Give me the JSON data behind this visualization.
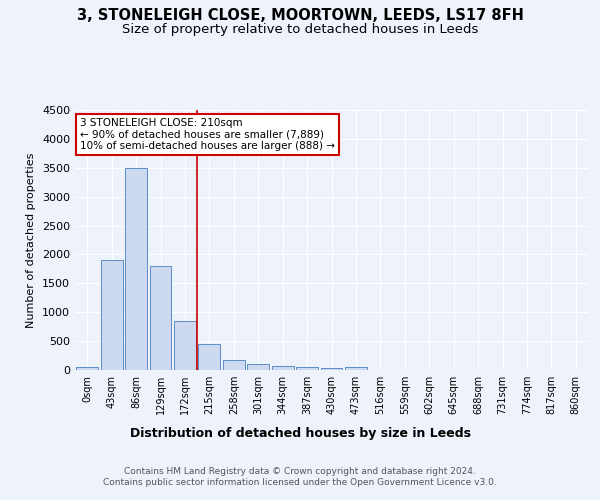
{
  "title1": "3, STONELEIGH CLOSE, MOORTOWN, LEEDS, LS17 8FH",
  "title2": "Size of property relative to detached houses in Leeds",
  "xlabel": "Distribution of detached houses by size in Leeds",
  "ylabel": "Number of detached properties",
  "categories": [
    "0sqm",
    "43sqm",
    "86sqm",
    "129sqm",
    "172sqm",
    "215sqm",
    "258sqm",
    "301sqm",
    "344sqm",
    "387sqm",
    "430sqm",
    "473sqm",
    "516sqm",
    "559sqm",
    "602sqm",
    "645sqm",
    "688sqm",
    "731sqm",
    "774sqm",
    "817sqm",
    "860sqm"
  ],
  "values": [
    50,
    1900,
    3500,
    1800,
    850,
    450,
    175,
    105,
    75,
    50,
    35,
    50,
    5,
    2,
    0,
    0,
    0,
    0,
    0,
    0,
    0
  ],
  "bar_color": "#ccd9f0",
  "bar_edge_color": "#5b8ec4",
  "red_line_x": 4.5,
  "annotation_text": "3 STONELEIGH CLOSE: 210sqm\n← 90% of detached houses are smaller (7,889)\n10% of semi-detached houses are larger (888) →",
  "annotation_box_color": "#ffffff",
  "annotation_border_color": "#cc0000",
  "footer": "Contains HM Land Registry data © Crown copyright and database right 2024.\nContains public sector information licensed under the Open Government Licence v3.0.",
  "ylim": [
    0,
    4500
  ],
  "background_color": "#eef2fb",
  "grid_color": "#ffffff",
  "title1_fontsize": 10.5,
  "title2_fontsize": 9.5
}
